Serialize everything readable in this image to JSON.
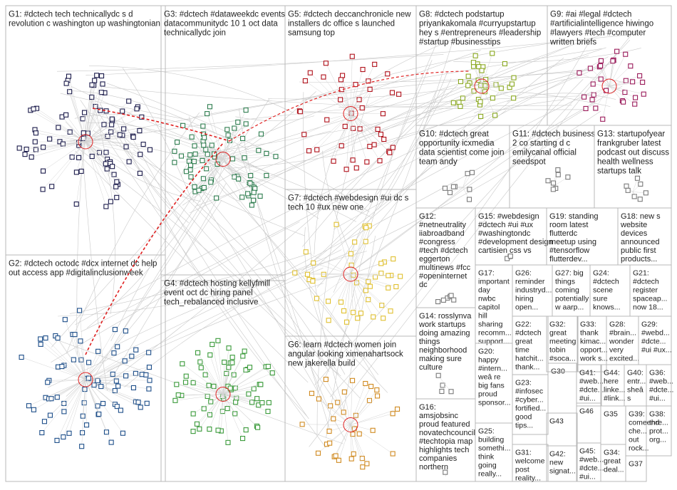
{
  "colors": {
    "grid": "#b8b8b8",
    "label": "#222222",
    "edge": "#c9c9c9",
    "highlight_edge": "#e02020",
    "G1": "#1a1a4a",
    "G2": "#1d4e89",
    "G3": "#2e7d4f",
    "G4": "#3a9a3a",
    "G5": "#b0101a",
    "G6": "#d08a20",
    "G7": "#e0c030",
    "G8": "#8aa820",
    "G9": "#9a1a5a"
  },
  "groups": [
    {
      "id": "G1",
      "lines": [
        "G1: #dctech tech technicallydc s d",
        "revolution c washington up washingtonian"
      ]
    },
    {
      "id": "G2",
      "lines": [
        "G2: #dctech octodc #dcx internet dc help",
        "out access app #digitalinclusionweek"
      ]
    },
    {
      "id": "G3",
      "lines": [
        "G3: #dctech #dataweekdc events",
        "datacommunitydc 10 1 oct data",
        "technicallydc join"
      ]
    },
    {
      "id": "G4",
      "lines": [
        "G4: #dctech hosting kellyfmill",
        "event oct dc hiring panel",
        "tech_rebalanced inclusive"
      ]
    },
    {
      "id": "G5",
      "lines": [
        "G5: #dctech deccanchronicle new",
        "installers dc office s launched",
        "samsung top"
      ]
    },
    {
      "id": "G6",
      "lines": [
        "G6: learn #dctech women join",
        "angular looking ximenahartsock",
        "new jakerella build"
      ]
    },
    {
      "id": "G7",
      "lines": [
        "G7: #dctech #webdesign #ui dc s",
        "tech 10 #ux new one"
      ]
    },
    {
      "id": "G8",
      "lines": [
        "G8: #dctech podstartup",
        "priyankakomala #curryupstartup",
        "hey s #entrepreneurs #leadership",
        "#startup #businesstips"
      ]
    },
    {
      "id": "G9",
      "lines": [
        "G9: #ai #legal #dctech",
        "#artificialintelligence hiwingo",
        "#lawyers #tech #computer",
        "written briefs"
      ]
    },
    {
      "id": "G10",
      "lines": [
        "G10: #dctech great",
        "opportunity icxmedia",
        "data scientist come join",
        "team andy"
      ]
    },
    {
      "id": "G11",
      "lines": [
        "G11: #dctech business",
        "2 co starting d c",
        "emilycanal official",
        "seedspot"
      ]
    },
    {
      "id": "G12",
      "lines": [
        "G12:",
        "#netneutrality",
        "iiabroadband",
        "#congress",
        "#tech #dctech",
        "eggerton",
        "multinews #fcc",
        "#openinternet",
        "dc"
      ]
    },
    {
      "id": "G13",
      "lines": [
        "G13: startupofyear",
        "frankgruber latest",
        "podcast out discuss",
        "health wellness",
        "startups talk"
      ]
    },
    {
      "id": "G14",
      "lines": [
        "G14: rosslynva",
        "work startups",
        "doing amazing",
        "things",
        "neighborhood",
        "making sure",
        "culture"
      ]
    },
    {
      "id": "G15",
      "lines": [
        "G15: #webdesign",
        "#dctech #ui #ux",
        "#washingtondc",
        "#development design",
        "cartisien css vs"
      ]
    },
    {
      "id": "G16",
      "lines": [
        "G16:",
        "amsjobsinc",
        "proud featured",
        "novatechcouncil",
        "#techtopia map",
        "highlights tech",
        "companies",
        "northern"
      ]
    },
    {
      "id": "G17",
      "lines": [
        "G17:",
        "important",
        "day",
        "nwbc",
        "capitol",
        "hill",
        "sharing",
        "recomm...",
        "support..."
      ]
    },
    {
      "id": "G18",
      "lines": [
        "G18: new s",
        "website",
        "devices",
        "announced",
        "public first",
        "products..."
      ]
    },
    {
      "id": "G19",
      "lines": [
        "G19: standing",
        "room latest",
        "flutterdc",
        "meetup using",
        "#tensorflow",
        "flutterdev..."
      ]
    },
    {
      "id": "G20",
      "lines": [
        "G20:",
        "happy",
        "#intern...",
        "weâ re",
        "big fans",
        "proud",
        "sponsor..."
      ]
    },
    {
      "id": "G21",
      "lines": [
        "G21:",
        "#dctech",
        "register",
        "spaceap...",
        "now 18..."
      ]
    },
    {
      "id": "G22",
      "lines": [
        "G22:",
        "#dctech",
        "great",
        "time",
        "hatchit...",
        "thank..."
      ]
    },
    {
      "id": "G23",
      "lines": [
        "G23:",
        "#infosec",
        "#cyber...",
        "fortified...",
        "good",
        "tips..."
      ]
    },
    {
      "id": "G24",
      "lines": [
        "G24:",
        "#dctech",
        "scene",
        "sure",
        "knows..."
      ]
    },
    {
      "id": "G25",
      "lines": [
        "G25:",
        "building",
        "somethi...",
        "think",
        "going",
        "really..."
      ]
    },
    {
      "id": "G26",
      "lines": [
        "G26:",
        "reminder",
        "industryd...",
        "hiring",
        "open..."
      ]
    },
    {
      "id": "G27",
      "lines": [
        "G27: big",
        "things",
        "coming",
        "potentially",
        "w aarp..."
      ]
    },
    {
      "id": "G28",
      "lines": [
        "G28:",
        "#brain...",
        "wonder",
        "very",
        "excited..."
      ]
    },
    {
      "id": "G29",
      "lines": [
        "G29:",
        "#webd...",
        "#dcte...",
        "#ui #ux..."
      ]
    },
    {
      "id": "G30",
      "lines": [
        "G30"
      ]
    },
    {
      "id": "G31",
      "lines": [
        "G31:",
        "welcome",
        "post",
        "reality..."
      ]
    },
    {
      "id": "G32",
      "lines": [
        "G32:",
        "great",
        "meeting",
        "tobin",
        "#soca..."
      ]
    },
    {
      "id": "G33",
      "lines": [
        "G33:",
        "thank",
        "kimac...",
        "opport...",
        "work s..."
      ]
    },
    {
      "id": "G34",
      "lines": [
        "G34:",
        "great",
        "deal..."
      ]
    },
    {
      "id": "G35",
      "lines": [
        "G35"
      ]
    },
    {
      "id": "G36",
      "lines": [
        "G36:",
        "#web...",
        "#dcte...",
        "#ui..."
      ]
    },
    {
      "id": "G37",
      "lines": [
        "G37"
      ]
    },
    {
      "id": "G38",
      "lines": [
        "G38:",
        "thre...",
        "prot...",
        "org..."
      ]
    },
    {
      "id": "G39",
      "lines": [
        "G39:",
        "comeend",
        "che...",
        "out",
        "rock..."
      ]
    },
    {
      "id": "G40",
      "lines": [
        "G40:",
        "entr...",
        "sheâ",
        "s"
      ]
    },
    {
      "id": "G41",
      "lines": [
        "G41:",
        "#web...",
        "#dcte...",
        "#ui..."
      ]
    },
    {
      "id": "G42",
      "lines": [
        "G42:",
        "new",
        "signat..."
      ]
    },
    {
      "id": "G43",
      "lines": [
        "G43"
      ]
    },
    {
      "id": "G44",
      "lines": [
        "G44:",
        "here",
        "linke...",
        "#link..."
      ]
    },
    {
      "id": "G45",
      "lines": [
        "G45:",
        "#web...",
        "#dcte...",
        "#ui..."
      ]
    },
    {
      "id": "G46",
      "lines": [
        "G46"
      ]
    }
  ]
}
